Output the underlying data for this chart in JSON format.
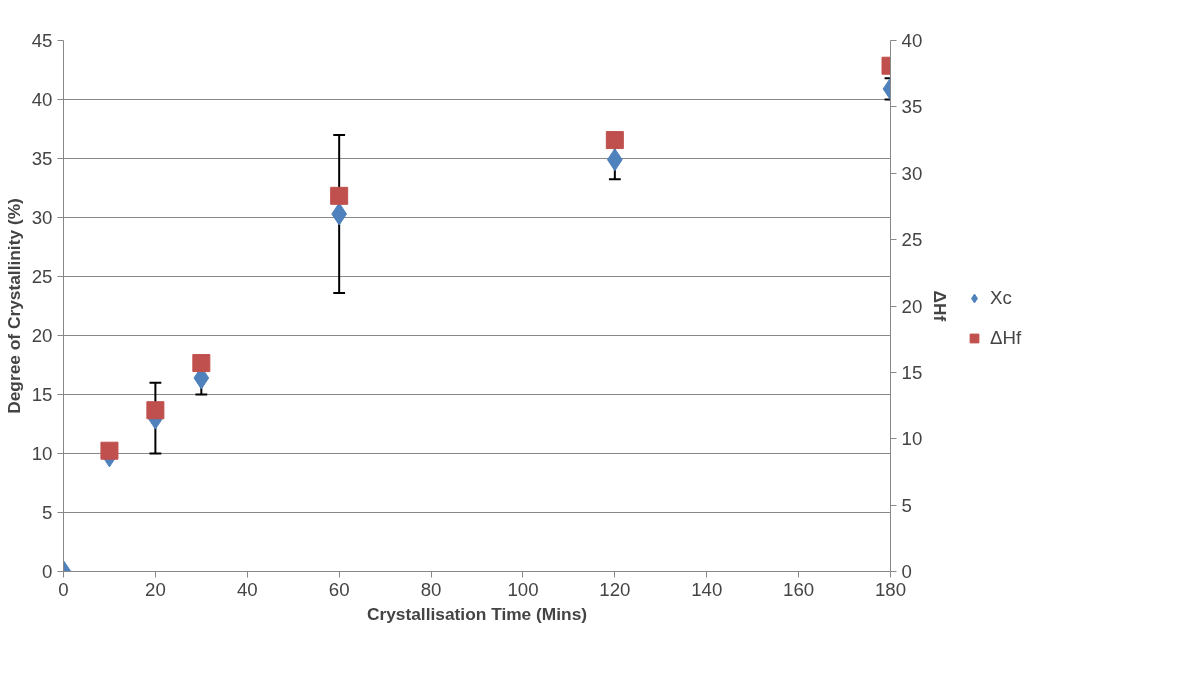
{
  "chart_data": {
    "type": "scatter",
    "xlabel": "Crystallisation Time (Mins)",
    "ylabel": "Degree of Crystallinity (%)",
    "y2label": "ΔHf",
    "x": [
      0,
      10,
      20,
      30,
      60,
      120,
      180
    ],
    "series": [
      {
        "name": "Xc",
        "color": "#4f81bd",
        "marker": "diamond",
        "values": [
          0,
          9.8,
          13.0,
          16.4,
          30.3,
          34.9,
          40.9
        ],
        "errors": [
          null,
          null,
          3.0,
          1.4,
          6.7,
          1.65,
          0.9
        ]
      },
      {
        "name": "ΔHf",
        "color": "#c0504d",
        "marker": "square",
        "axis": "y2",
        "x": [
          10,
          20,
          30,
          60,
          120,
          180
        ],
        "values": [
          9.1,
          12.15,
          15.7,
          28.3,
          32.5,
          38.1
        ]
      }
    ],
    "xlim": [
      0,
      180
    ],
    "xticks": [
      0,
      20,
      40,
      60,
      80,
      100,
      120,
      140,
      160,
      180
    ],
    "ylim": [
      0,
      45
    ],
    "yticks": [
      0,
      5,
      10,
      15,
      20,
      25,
      30,
      35,
      40,
      45
    ],
    "y2lim": [
      0,
      40
    ],
    "y2ticks": [
      0,
      5,
      10,
      15,
      20,
      25,
      30,
      35,
      40
    ],
    "grid": "y",
    "legend": "right"
  }
}
